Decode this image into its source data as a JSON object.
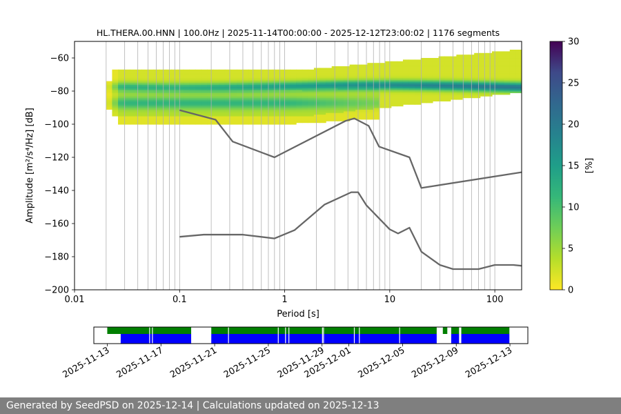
{
  "chart_data": [
    {
      "type": "heatmap",
      "title": "HL.THERA.00.HNN | 100.0Hz | 2025-11-14T00:00:00 - 2025-12-12T23:00:02 | 1176 segments",
      "xlabel": "Period [s]",
      "ylabel": "Amplitude [m²/s⁴/Hz] [dB]",
      "x_scale": "log",
      "xlim": [
        0.01,
        180
      ],
      "ylim": [
        -200,
        -50
      ],
      "x_ticks": [
        "0.01",
        "0.1",
        "1",
        "10",
        "100"
      ],
      "y_ticks": [
        "−60",
        "−80",
        "−100",
        "−120",
        "−140",
        "−160",
        "−180",
        "−200"
      ],
      "grid": "vertical lines at period bins",
      "colormap": "viridis reversed",
      "colorbar": {
        "label": "[%]",
        "range": [
          0,
          30
        ],
        "ticks": [
          "0",
          "5",
          "10",
          "15",
          "20",
          "25",
          "30"
        ]
      },
      "period_range": [
        0.02,
        180
      ],
      "density_bands": [
        {
          "period_from": 0.02,
          "period_to": 180,
          "amp_from": -95,
          "amp_to": -67,
          "peak": -77,
          "max_percent": 18
        },
        {
          "period_from": 0.02,
          "period_to": 8,
          "amp_from": -100,
          "amp_to": -80,
          "peak": -87,
          "max_percent": 8
        }
      ],
      "series": [
        {
          "name": "",
          "color": "#666666",
          "x": [
            0.1,
            0.22,
            0.32,
            0.8,
            3.8,
            4.6,
            6.3,
            7.9,
            15.4,
            20,
            180
          ],
          "y": [
            -91.5,
            -97.3,
            -110.5,
            -120,
            -98,
            -96.5,
            -101,
            -113.5,
            -120,
            -138.5,
            -129
          ]
        },
        {
          "name": "",
          "color": "#666666",
          "x": [
            0.1,
            0.17,
            0.4,
            0.8,
            1.24,
            2.4,
            4.3,
            5.0,
            6.0,
            10,
            12,
            15.4,
            20,
            30,
            40,
            70,
            100,
            150,
            180
          ],
          "y": [
            -168,
            -166.7,
            -166.7,
            -169,
            -164,
            -148.5,
            -141.1,
            -141.1,
            -149,
            -163.5,
            -166,
            -162.5,
            -177,
            -185,
            -187.5,
            -187.5,
            -185,
            -185,
            -185.5
          ]
        }
      ]
    },
    {
      "type": "timeline",
      "x_ticks": [
        "2025-11-13",
        "2025-11-17",
        "2025-11-21",
        "2025-11-25",
        "2025-11-29",
        "2025-12-01",
        "2025-12-05",
        "2025-12-09",
        "2025-12-13"
      ],
      "xlim": [
        "2025-11-12T00:00",
        "2025-12-14T08:00"
      ],
      "colors": {
        "top": "#007f00",
        "bottom": "#0000ff"
      },
      "top_segments": [
        [
          "2025-11-13T00:00",
          "2025-11-19T06:00"
        ],
        [
          "2025-11-20T18:00",
          "2025-12-07T13:00"
        ],
        [
          "2025-12-08T00:00",
          "2025-12-08T08:00"
        ],
        [
          "2025-12-08T15:00",
          "2025-12-09T05:00"
        ],
        [
          "2025-12-09T09:00",
          "2025-12-12T23:00"
        ]
      ],
      "bottom_segments": [
        [
          "2025-11-14T00:00",
          "2025-11-19T06:00"
        ],
        [
          "2025-11-20T18:00",
          "2025-12-07T13:00"
        ],
        [
          "2025-12-08T15:00",
          "2025-12-09T05:00"
        ],
        [
          "2025-12-09T09:00",
          "2025-12-12T23:00"
        ]
      ],
      "gaps": [
        "2025-11-16T03:00",
        "2025-11-16T08:00",
        "2025-11-22T00:00",
        "2025-11-25T17:00",
        "2025-11-26T06:00",
        "2025-11-26T12:00",
        "2025-11-29T00:00",
        "2025-11-29T02:00",
        "2025-12-01T09:00",
        "2025-12-01T18:00",
        "2025-12-04T18:00"
      ]
    }
  ],
  "footer": {
    "text": "Generated by SeedPSD on 2025-12-14 | Calculations updated on 2025-12-13"
  }
}
